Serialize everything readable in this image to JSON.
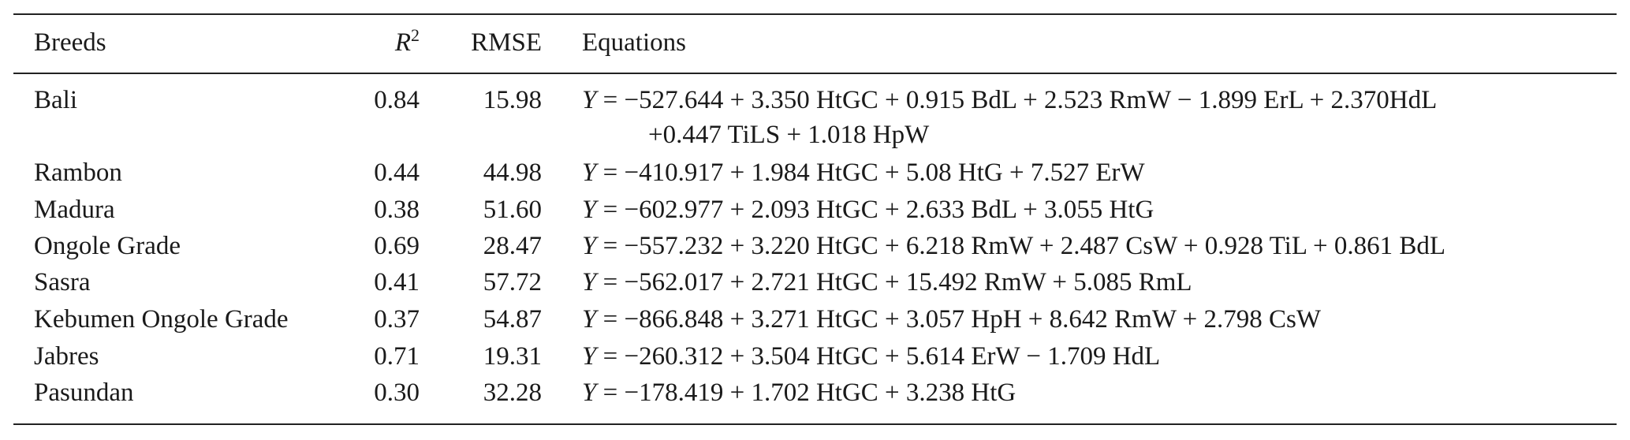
{
  "table": {
    "header": [
      "Breeds",
      {
        "base": "R",
        "sup": "2"
      },
      "RMSE",
      "Equations"
    ],
    "rows": [
      {
        "breed": "Bali",
        "r2": "0.84",
        "rmse": "15.98",
        "equation": {
          "lhs": "Y",
          "rhs": [
            "= −527.644 + 3.350 HtGC + 0.915 BdL + 2.523 RmW − 1.899 ErL + 2.370HdL",
            "+0.447 TiLS + 1.018 HpW"
          ]
        }
      },
      {
        "breed": "Rambon",
        "r2": "0.44",
        "rmse": "44.98",
        "equation": {
          "lhs": "Y",
          "rhs": [
            "= −410.917 + 1.984 HtGC + 5.08 HtG + 7.527 ErW"
          ]
        }
      },
      {
        "breed": "Madura",
        "r2": "0.38",
        "rmse": "51.60",
        "equation": {
          "lhs": "Y",
          "rhs": [
            "= −602.977 + 2.093 HtGC + 2.633 BdL + 3.055 HtG"
          ]
        }
      },
      {
        "breed": "Ongole Grade",
        "r2": "0.69",
        "rmse": "28.47",
        "equation": {
          "lhs": "Y",
          "rhs": [
            "= −557.232 + 3.220 HtGC + 6.218 RmW + 2.487 CsW + 0.928 TiL + 0.861 BdL"
          ]
        }
      },
      {
        "breed": "Sasra",
        "r2": "0.41",
        "rmse": "57.72",
        "equation": {
          "lhs": "Y",
          "rhs": [
            "= −562.017 + 2.721 HtGC + 15.492 RmW + 5.085 RmL"
          ]
        }
      },
      {
        "breed": "Kebumen Ongole Grade",
        "r2": "0.37",
        "rmse": "54.87",
        "equation": {
          "lhs": "Y",
          "rhs": [
            "= −866.848 + 3.271 HtGC + 3.057 HpH + 8.642 RmW + 2.798 CsW"
          ]
        }
      },
      {
        "breed": "Jabres",
        "r2": "0.71",
        "rmse": "19.31",
        "equation": {
          "lhs": "Y",
          "rhs": [
            "= −260.312 + 3.504 HtGC + 5.614 ErW − 1.709 HdL"
          ]
        }
      },
      {
        "breed": "Pasundan",
        "r2": "0.30",
        "rmse": "32.28",
        "equation": {
          "lhs": "Y",
          "rhs": [
            "= −178.419 + 1.702 HtGC + 3.238 HtG"
          ]
        }
      }
    ]
  }
}
